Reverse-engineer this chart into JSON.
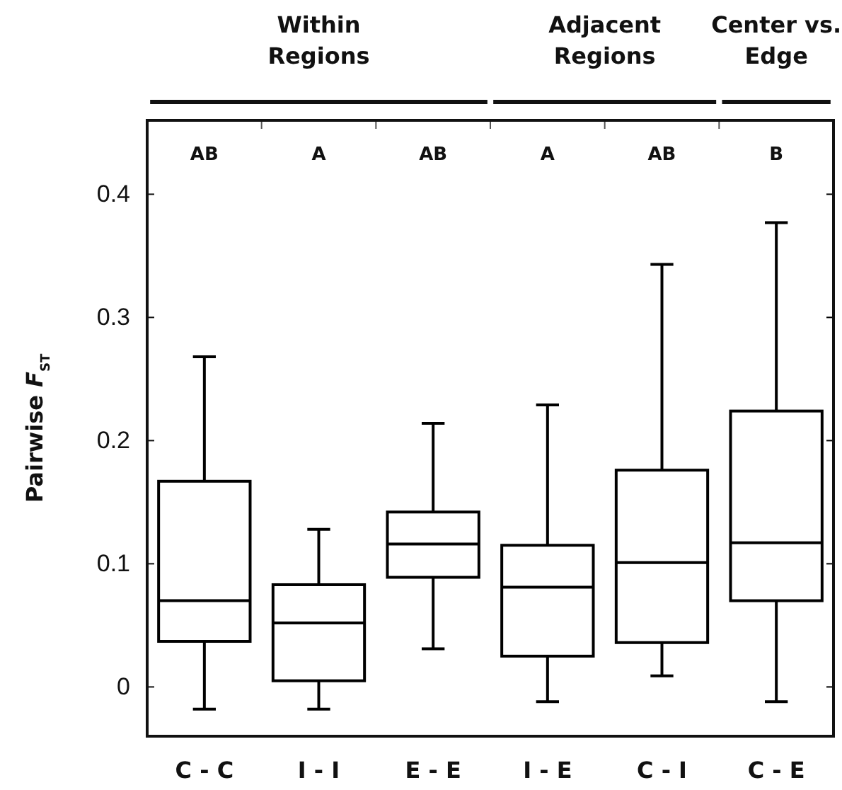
{
  "chart_data": {
    "type": "box",
    "ylabel": "Pairwise F$_{ST}$",
    "categories": [
      "C - C",
      "I - I",
      "E - E",
      "I - E",
      "C - I",
      "C - E"
    ],
    "boxes": [
      {
        "low": -0.018,
        "q1": 0.037,
        "median": 0.07,
        "q3": 0.167,
        "high": 0.268
      },
      {
        "low": -0.018,
        "q1": 0.005,
        "median": 0.052,
        "q3": 0.083,
        "high": 0.128
      },
      {
        "low": 0.031,
        "q1": 0.089,
        "median": 0.116,
        "q3": 0.142,
        "high": 0.214
      },
      {
        "low": -0.012,
        "q1": 0.025,
        "median": 0.081,
        "q3": 0.115,
        "high": 0.229
      },
      {
        "low": 0.009,
        "q1": 0.036,
        "median": 0.101,
        "q3": 0.176,
        "high": 0.343
      },
      {
        "low": -0.012,
        "q1": 0.07,
        "median": 0.117,
        "q3": 0.224,
        "high": 0.377
      }
    ],
    "color": "#000000",
    "ylim": [
      -0.04,
      0.46
    ],
    "yticks": [
      0,
      0.1,
      0.2,
      0.3,
      0.4
    ],
    "grid": false,
    "annotations": [
      "AB",
      "A",
      "AB",
      "A",
      "AB",
      "B",
      "Within Regions",
      "Adjacent Regions",
      "Center vs. Edge"
    ]
  }
}
